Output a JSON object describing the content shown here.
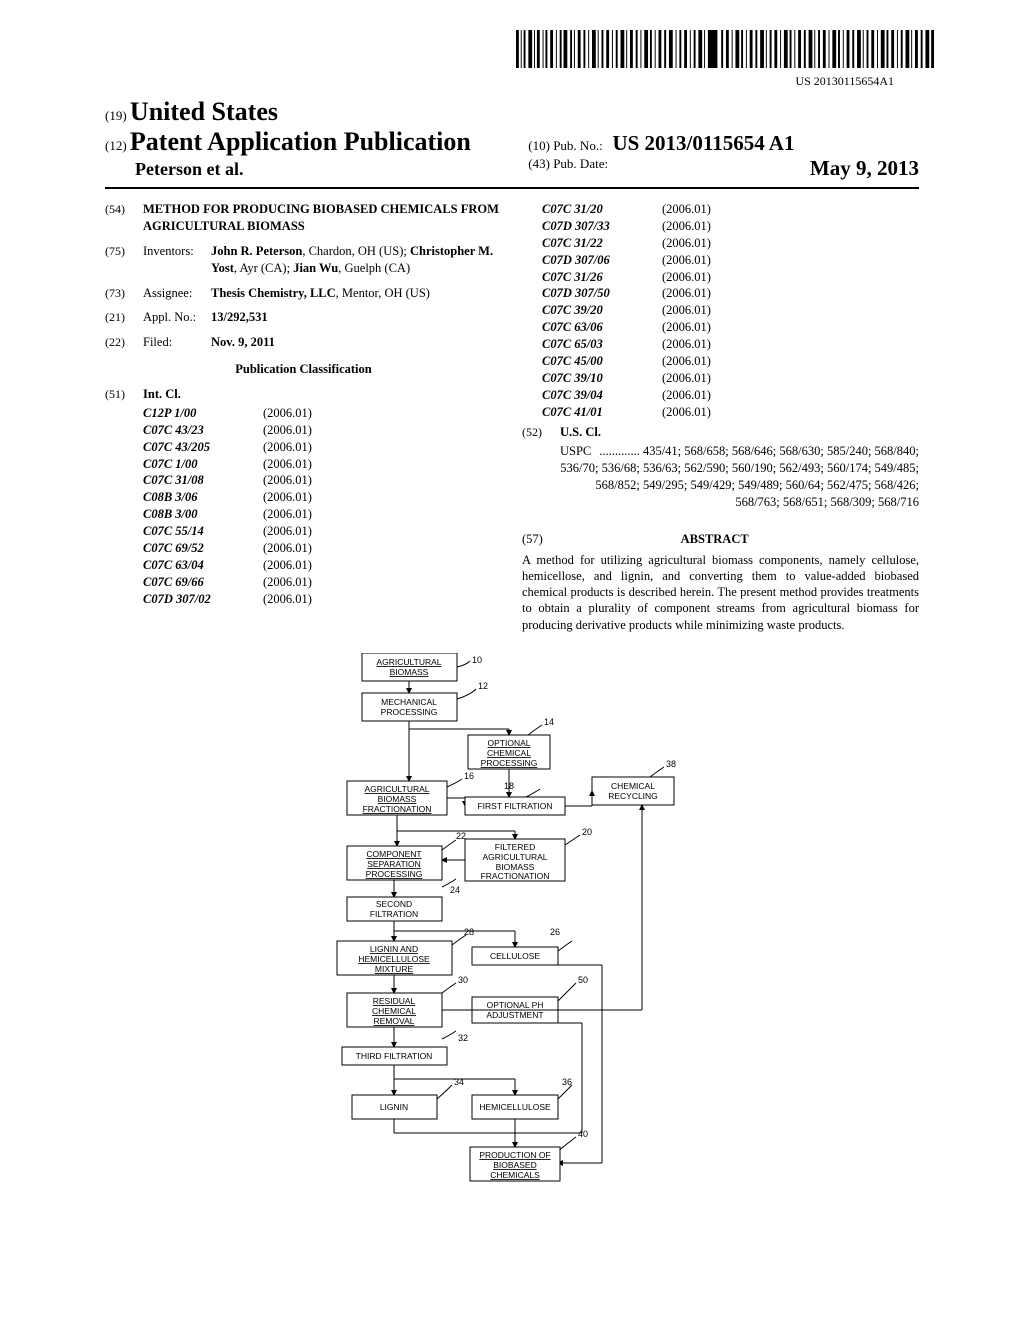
{
  "barcode_text": "US 20130115654A1",
  "header": {
    "code19": "(19)",
    "country": "United States",
    "code12": "(12)",
    "pub_type": "Patent Application Publication",
    "authors": "Peterson et al.",
    "code10": "(10)",
    "pubno_label": "Pub. No.:",
    "pubno": "US 2013/0115654 A1",
    "code43": "(43)",
    "pubdate_label": "Pub. Date:",
    "pubdate": "May 9, 2013"
  },
  "f54": {
    "code": "(54)",
    "title": "METHOD FOR PRODUCING BIOBASED CHEMICALS FROM AGRICULTURAL BIOMASS"
  },
  "f75": {
    "code": "(75)",
    "label": "Inventors:",
    "names": [
      {
        "name": "John R. Peterson",
        "loc": ", Chardon, OH (US); "
      },
      {
        "name": "Christopher M. Yost",
        "loc": ", Ayr (CA); "
      },
      {
        "name": "Jian Wu",
        "loc": ", Guelph (CA)"
      }
    ]
  },
  "f73": {
    "code": "(73)",
    "label": "Assignee:",
    "name": "Thesis Chemistry, LLC",
    "loc": ", Mentor, OH (US)"
  },
  "f21": {
    "code": "(21)",
    "label": "Appl. No.:",
    "value": "13/292,531"
  },
  "f22": {
    "code": "(22)",
    "label": "Filed:",
    "value": "Nov. 9, 2011"
  },
  "pub_class_heading": "Publication Classification",
  "f51": {
    "code": "(51)",
    "label": "Int. Cl."
  },
  "intcl_left": [
    {
      "code": "C12P 1/00",
      "year": "(2006.01)"
    },
    {
      "code": "C07C 43/23",
      "year": "(2006.01)"
    },
    {
      "code": "C07C 43/205",
      "year": "(2006.01)"
    },
    {
      "code": "C07C 1/00",
      "year": "(2006.01)"
    },
    {
      "code": "C07C 31/08",
      "year": "(2006.01)"
    },
    {
      "code": "C08B 3/06",
      "year": "(2006.01)"
    },
    {
      "code": "C08B 3/00",
      "year": "(2006.01)"
    },
    {
      "code": "C07C 55/14",
      "year": "(2006.01)"
    },
    {
      "code": "C07C 69/52",
      "year": "(2006.01)"
    },
    {
      "code": "C07C 63/04",
      "year": "(2006.01)"
    },
    {
      "code": "C07C 69/66",
      "year": "(2006.01)"
    },
    {
      "code": "C07D 307/02",
      "year": "(2006.01)"
    }
  ],
  "intcl_right": [
    {
      "code": "C07C 31/20",
      "year": "(2006.01)"
    },
    {
      "code": "C07D 307/33",
      "year": "(2006.01)"
    },
    {
      "code": "C07C 31/22",
      "year": "(2006.01)"
    },
    {
      "code": "C07D 307/06",
      "year": "(2006.01)"
    },
    {
      "code": "C07C 31/26",
      "year": "(2006.01)"
    },
    {
      "code": "C07D 307/50",
      "year": "(2006.01)"
    },
    {
      "code": "C07C 39/20",
      "year": "(2006.01)"
    },
    {
      "code": "C07C 63/06",
      "year": "(2006.01)"
    },
    {
      "code": "C07C 65/03",
      "year": "(2006.01)"
    },
    {
      "code": "C07C 45/00",
      "year": "(2006.01)"
    },
    {
      "code": "C07C 39/10",
      "year": "(2006.01)"
    },
    {
      "code": "C07C 39/04",
      "year": "(2006.01)"
    },
    {
      "code": "C07C 41/01",
      "year": "(2006.01)"
    }
  ],
  "f52": {
    "code": "(52)",
    "label": "U.S. Cl.",
    "prefix": "USPC ",
    "value": "............. 435/41; 568/658; 568/646; 568/630; 585/240; 568/840; 536/70; 536/68; 536/63; 562/590; 560/190; 562/493; 560/174; 549/485; 568/852; 549/295; 549/429; 549/489; 560/64; 562/475; 568/426; 568/763; 568/651; 568/309; 568/716"
  },
  "f57": {
    "code": "(57)",
    "heading": "ABSTRACT",
    "text": "A method for utilizing agricultural biomass components, namely cellulose, hemicellose, and lignin, and converting them to value-added biobased chemical products is described herein. The present method provides treatments to obtain a plurality of component streams from agricultural biomass for producing derivative products while minimizing waste products."
  },
  "diagram": {
    "nodes": [
      {
        "id": "n10",
        "label": "AGRICULTURAL BIOMASS",
        "ref": "10",
        "underline": true
      },
      {
        "id": "n12",
        "label": "MECHANICAL PROCESSING",
        "ref": "12"
      },
      {
        "id": "n14",
        "label": "OPTIONAL CHEMICAL PROCESSING",
        "ref": "14",
        "underline": true
      },
      {
        "id": "n16",
        "label": "AGRICULTURAL BIOMASS FRACTIONATION",
        "ref": "16",
        "underline": true
      },
      {
        "id": "n18",
        "label": "FIRST FILTRATION",
        "ref": "18"
      },
      {
        "id": "n38",
        "label": "CHEMICAL RECYCLING",
        "ref": "38"
      },
      {
        "id": "n22",
        "label": "COMPONENT SEPARATION PROCESSING",
        "ref": "22",
        "underline": true
      },
      {
        "id": "n20",
        "label": "FILTERED AGRICULTURAL BIOMASS FRACTIONATION",
        "ref": "20"
      },
      {
        "id": "n24",
        "label": "SECOND FILTRATION",
        "ref": "24"
      },
      {
        "id": "n28",
        "label": "LIGNIN AND HEMICELLULOSE MIXTURE",
        "ref": "28",
        "underline": true
      },
      {
        "id": "n26",
        "label": "CELLULOSE",
        "ref": "26"
      },
      {
        "id": "n30",
        "label": "RESIDUAL CHEMICAL REMOVAL",
        "ref": "30",
        "underline": true
      },
      {
        "id": "n50",
        "label": "OPTIONAL PH ADJUSTMENT",
        "ref": "50"
      },
      {
        "id": "n32",
        "label": "THIRD FILTRATION",
        "ref": "32"
      },
      {
        "id": "n34",
        "label": "LIGNIN",
        "ref": "34"
      },
      {
        "id": "n36",
        "label": "HEMICELLULOSE",
        "ref": "36"
      },
      {
        "id": "n40",
        "label": "PRODUCTION OF BIOBASED CHEMICALS",
        "ref": "40",
        "underline": true
      }
    ]
  }
}
